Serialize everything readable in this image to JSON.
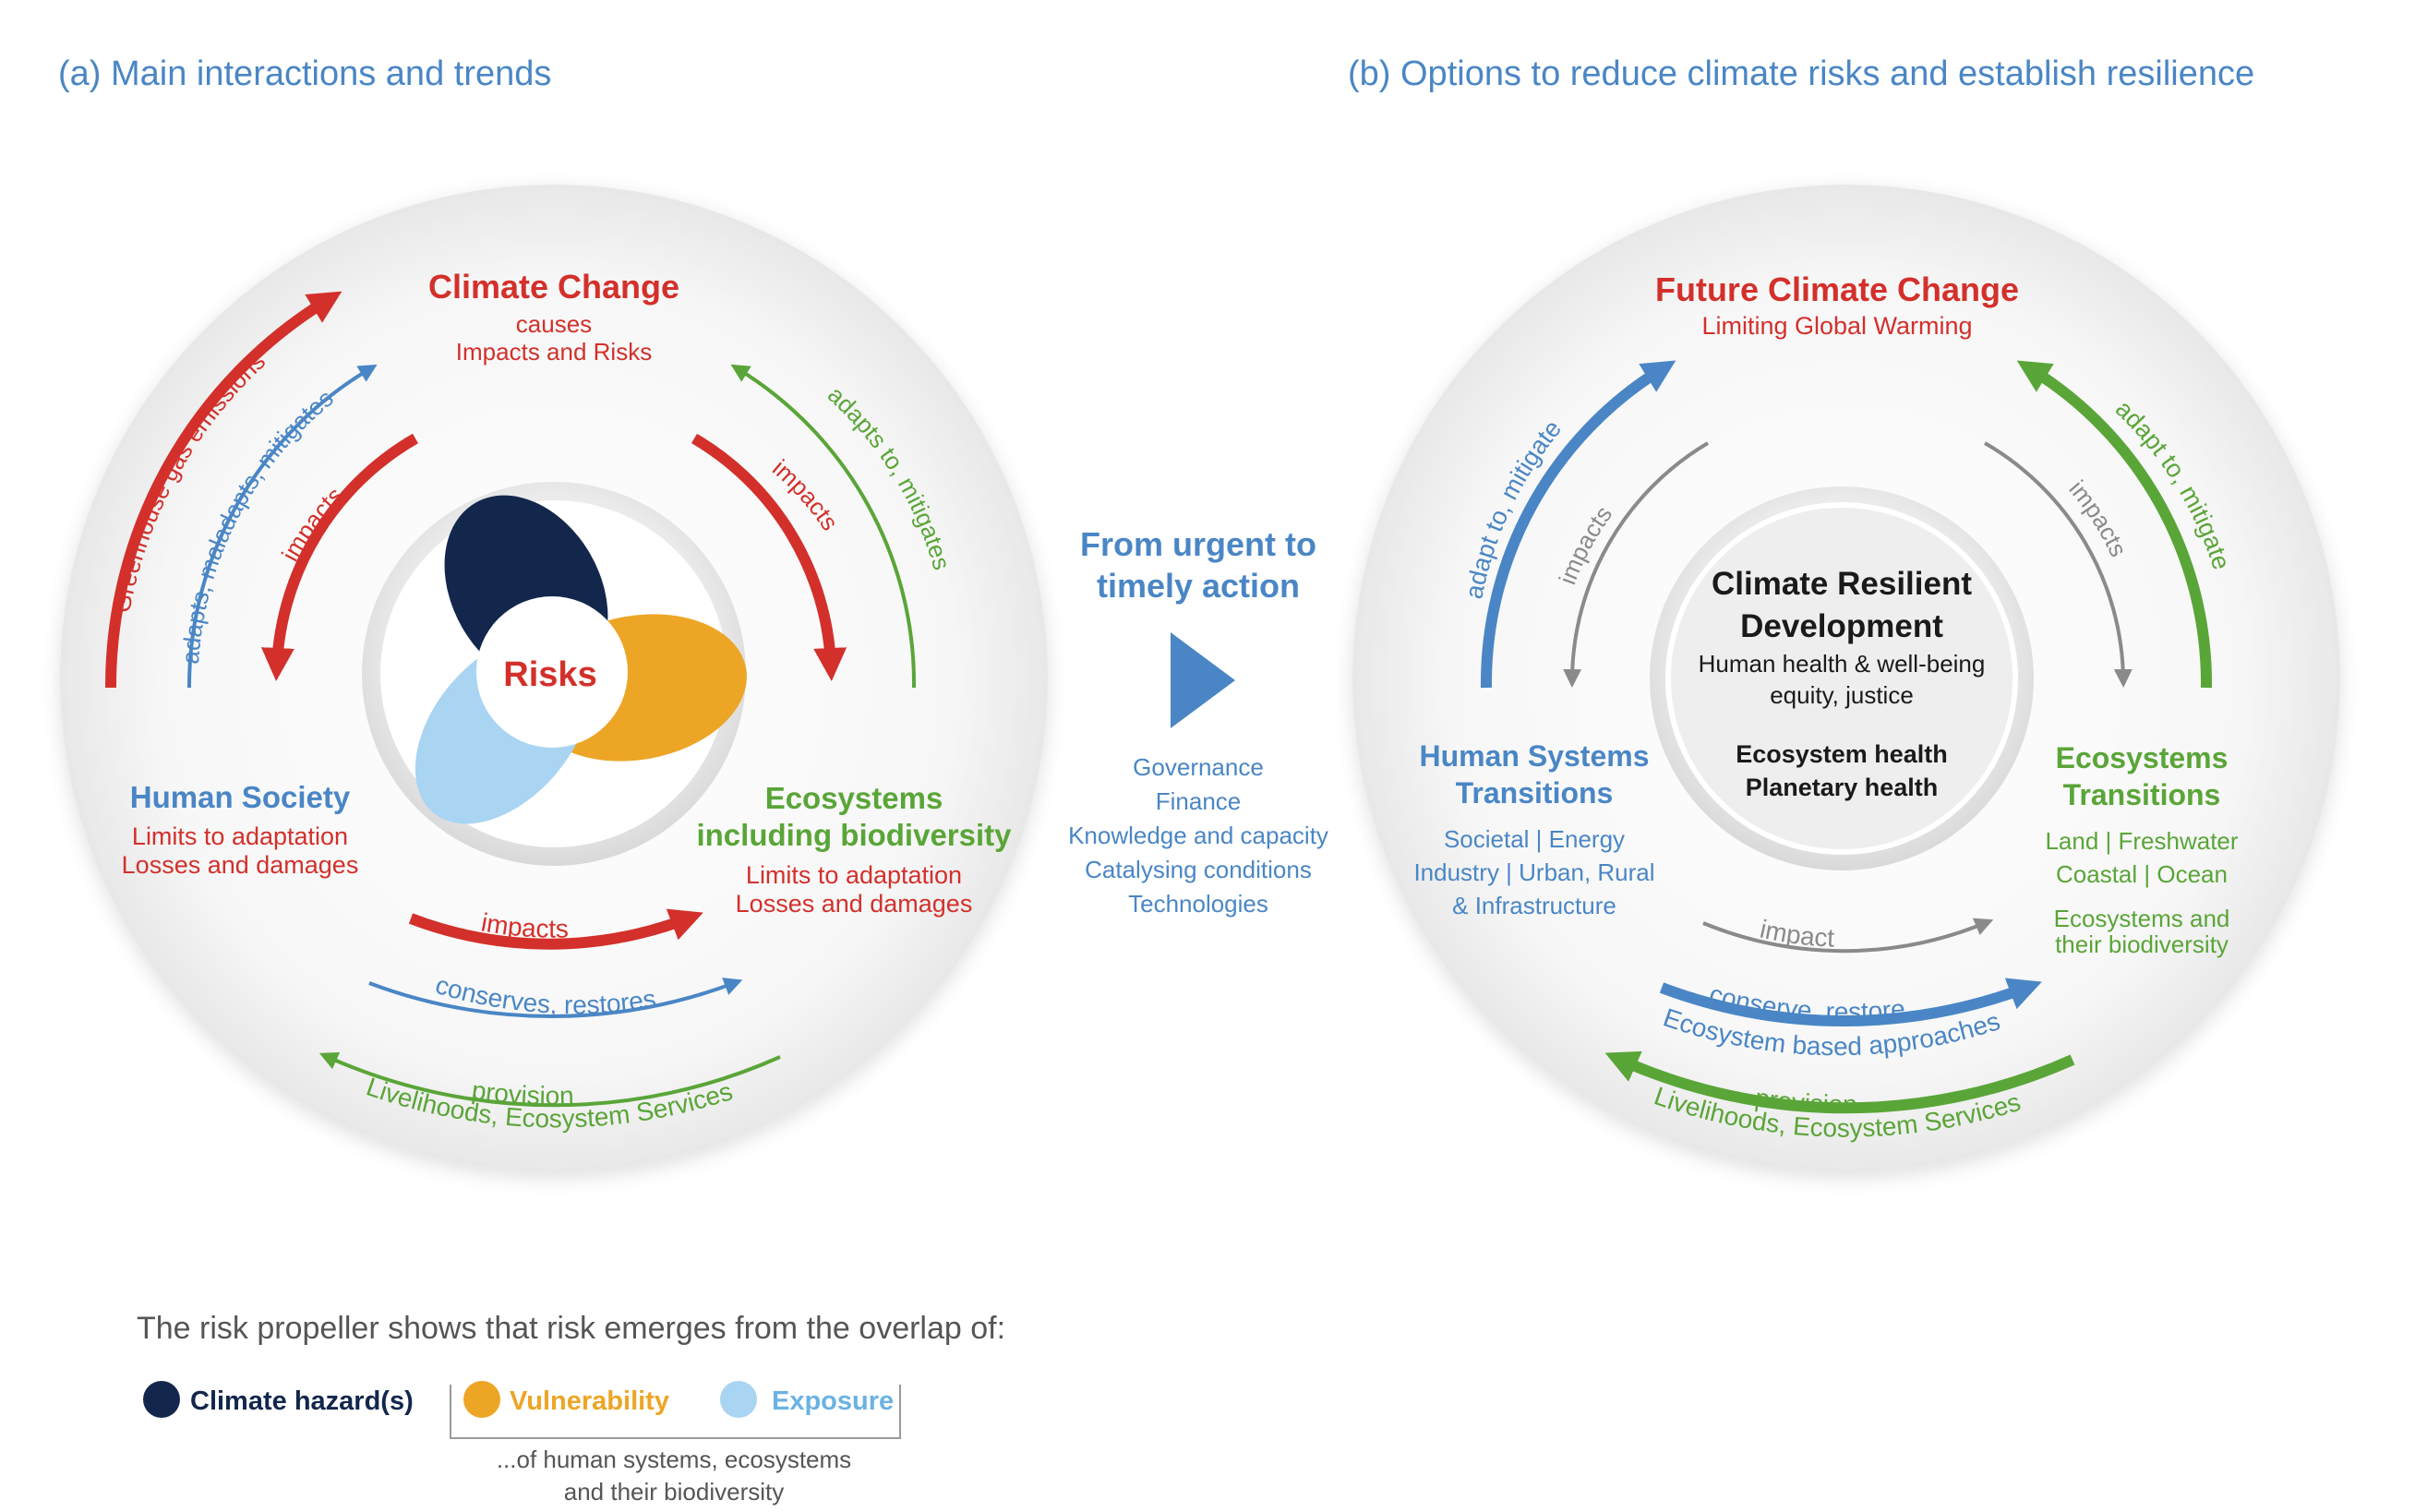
{
  "colors": {
    "red": "#d3302b",
    "blue": "#4a86c5",
    "green": "#5aa538",
    "grey": "#8a8a8a",
    "navy": "#13274d",
    "orange": "#eda526",
    "lightblue": "#a9d4f2"
  },
  "panel_a": {
    "title": "(a) Main interactions and trends",
    "climate_change": {
      "title": "Climate Change",
      "line1": "causes",
      "line2": "Impacts and Risks"
    },
    "human_society": {
      "title": "Human Society",
      "line1": "Limits to adaptation",
      "line2": "Losses and damages"
    },
    "ecosystems": {
      "title1": "Ecosystems",
      "title2": "including biodiversity",
      "line1": "Limits to adaptation",
      "line2": "Losses and damages"
    },
    "center": "Risks",
    "arrows": {
      "greenhouse": "Greenhouse gas emissions",
      "adapts_maladapts": "adapts, maladapts, mitigates",
      "impacts_left": "impacts",
      "impacts_right": "impacts",
      "adapts_mitigates": "adapts to, mitigates",
      "impacts_bottom": "impacts",
      "conserves": "conserves, restores",
      "provision": "provision",
      "livelihoods": "Livelihoods, Ecosystem Services"
    }
  },
  "middle": {
    "title1": "From urgent to",
    "title2": "timely action",
    "items": [
      "Governance",
      "Finance",
      "Knowledge and capacity",
      "Catalysing conditions",
      "Technologies"
    ]
  },
  "panel_b": {
    "title": "(b) Options to reduce climate risks and establish resilience",
    "future": {
      "title": "Future Climate Change",
      "line1": "Limiting Global Warming"
    },
    "human": {
      "title1": "Human Systems",
      "title2": "Transitions",
      "line1": "Societal | Energy",
      "line2": "Industry | Urban, Rural",
      "line3": "& Infrastructure"
    },
    "ecosystems": {
      "title1": "Ecosystems",
      "title2": "Transitions",
      "line1": "Land | Freshwater",
      "line2": "Coastal | Ocean",
      "line3": "Ecosystems and",
      "line4": "their biodiversity"
    },
    "center": {
      "line1": "Climate Resilient",
      "line2": "Development",
      "line3": "Human health & well-being",
      "line4": "equity, justice",
      "line5": "Ecosystem health",
      "line6": "Planetary health"
    },
    "arrows": {
      "adapt_left": "adapt to, mitigate",
      "impacts_left": "impacts",
      "impacts_right": "impacts",
      "adapt_right": "adapt to, mitigate",
      "impact_bottom": "impact",
      "conserve": "conserve, restore",
      "ecosystem_based": "Ecosystem based approaches",
      "provision": "provision",
      "livelihoods": "Livelihoods, Ecosystem Services"
    }
  },
  "legend": {
    "intro": "The risk propeller shows that risk emerges from the overlap of:",
    "hazard": "Climate hazard(s)",
    "vulnerability": "Vulnerability",
    "exposure": "Exposure",
    "note1": "...of human systems, ecosystems",
    "note2": "and their biodiversity"
  }
}
